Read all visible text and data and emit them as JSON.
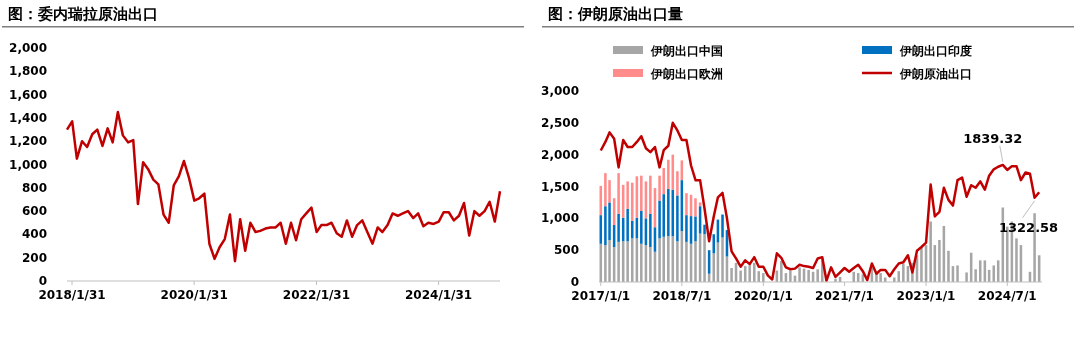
{
  "chart_data": [
    {
      "type": "line",
      "title": "图：委内瑞拉原油出口",
      "grid": false,
      "marker": "none",
      "line_style": "solid",
      "x": [
        "2018-01",
        "2018-02",
        "2018-03",
        "2018-04",
        "2018-05",
        "2018-06",
        "2018-07",
        "2018-08",
        "2018-09",
        "2018-10",
        "2018-11",
        "2018-12",
        "2019-01",
        "2019-02",
        "2019-03",
        "2019-04",
        "2019-05",
        "2019-06",
        "2019-07",
        "2019-08",
        "2019-09",
        "2019-10",
        "2019-11",
        "2019-12",
        "2020-01",
        "2020-02",
        "2020-03",
        "2020-04",
        "2020-05",
        "2020-06",
        "2020-07",
        "2020-08",
        "2020-09",
        "2020-10",
        "2020-11",
        "2020-12",
        "2021-01",
        "2021-02",
        "2021-03",
        "2021-04",
        "2021-05",
        "2021-06",
        "2021-07",
        "2021-08",
        "2021-09",
        "2021-10",
        "2021-11",
        "2021-12",
        "2022-01",
        "2022-02",
        "2022-03",
        "2022-04",
        "2022-05",
        "2022-06",
        "2022-07",
        "2022-08",
        "2022-09",
        "2022-10",
        "2022-11",
        "2022-12",
        "2023-01",
        "2023-02",
        "2023-03",
        "2023-04",
        "2023-05",
        "2023-06",
        "2023-07",
        "2023-08",
        "2023-09",
        "2023-10",
        "2023-11",
        "2023-12",
        "2024-01",
        "2024-02",
        "2024-03",
        "2024-04",
        "2024-05",
        "2024-06",
        "2024-07",
        "2024-08",
        "2024-09",
        "2024-10",
        "2024-11",
        "2024-12",
        "2025-01",
        "2025-02"
      ],
      "series": [
        {
          "color": "#c00000",
          "values": [
            1300,
            1370,
            1050,
            1200,
            1150,
            1260,
            1300,
            1160,
            1310,
            1190,
            1450,
            1250,
            1190,
            1210,
            660,
            1020,
            960,
            870,
            830,
            570,
            500,
            820,
            900,
            1030,
            880,
            690,
            710,
            750,
            320,
            190,
            290,
            360,
            570,
            170,
            530,
            260,
            500,
            420,
            430,
            450,
            460,
            460,
            500,
            320,
            500,
            350,
            530,
            580,
            630,
            420,
            480,
            480,
            500,
            410,
            380,
            520,
            380,
            480,
            520,
            420,
            320,
            460,
            420,
            480,
            580,
            560,
            580,
            600,
            540,
            580,
            470,
            500,
            490,
            510,
            590,
            590,
            520,
            560,
            670,
            390,
            600,
            560,
            600,
            680,
            510,
            770
          ]
        }
      ],
      "xlim": [
        "2018-01",
        "2025-02"
      ],
      "xticks": [
        {
          "value": "2018-01-31",
          "label": "2018/1/31"
        },
        {
          "value": "2020-01-31",
          "label": "2020/1/31"
        },
        {
          "value": "2022-01-31",
          "label": "2022/1/31"
        },
        {
          "value": "2024-01-31",
          "label": "2024/1/31"
        }
      ],
      "ylim": [
        0,
        2000
      ],
      "yticks": [
        0,
        {
          "value": 200,
          "label": "200"
        },
        {
          "value": 400,
          "label": "400"
        },
        {
          "value": 600,
          "label": "600"
        },
        {
          "value": 800,
          "label": "800"
        },
        {
          "value": 1000,
          "label": "1,000"
        },
        {
          "value": 1200,
          "label": "1,200"
        },
        {
          "value": 1400,
          "label": "1,400"
        },
        {
          "value": 1600,
          "label": "1,600"
        },
        {
          "value": 1800,
          "label": "1,800"
        },
        {
          "value": 2000,
          "label": "2,000"
        }
      ]
    },
    {
      "type": "bar",
      "title": "图：伊朗原油出口量",
      "stacked": true,
      "grid": false,
      "legend": "top",
      "marker": "none",
      "line_style": "solid",
      "x": [
        "2017-01",
        "2017-02",
        "2017-03",
        "2017-04",
        "2017-05",
        "2017-06",
        "2017-07",
        "2017-08",
        "2017-09",
        "2017-10",
        "2017-11",
        "2017-12",
        "2018-01",
        "2018-02",
        "2018-03",
        "2018-04",
        "2018-05",
        "2018-06",
        "2018-07",
        "2018-08",
        "2018-09",
        "2018-10",
        "2018-11",
        "2018-12",
        "2019-01",
        "2019-02",
        "2019-03",
        "2019-04",
        "2019-05",
        "2019-06",
        "2019-07",
        "2019-08",
        "2019-09",
        "2019-10",
        "2019-11",
        "2019-12",
        "2020-01",
        "2020-02",
        "2020-03",
        "2020-04",
        "2020-05",
        "2020-06",
        "2020-07",
        "2020-08",
        "2020-09",
        "2020-10",
        "2020-11",
        "2020-12",
        "2021-01",
        "2021-02",
        "2021-03",
        "2021-04",
        "2021-05",
        "2021-06",
        "2021-07",
        "2021-08",
        "2021-09",
        "2021-10",
        "2021-11",
        "2021-12",
        "2022-01",
        "2022-02",
        "2022-03",
        "2022-04",
        "2022-05",
        "2022-06",
        "2022-07",
        "2022-08",
        "2022-09",
        "2022-10",
        "2022-11",
        "2022-12",
        "2023-01",
        "2023-02",
        "2023-03",
        "2023-04",
        "2023-05",
        "2023-06",
        "2023-07",
        "2023-08",
        "2023-09",
        "2023-10",
        "2023-11",
        "2023-12",
        "2024-01",
        "2024-02",
        "2024-03",
        "2024-04",
        "2024-05",
        "2024-06",
        "2024-07",
        "2024-08",
        "2024-09",
        "2024-10",
        "2024-11",
        "2024-12",
        "2025-01",
        "2025-02"
      ],
      "series": [
        {
          "name": "伊朗出口中国",
          "color": "#a6a6a6",
          "values": [
            600,
            580,
            660,
            550,
            630,
            640,
            640,
            685,
            685,
            600,
            580,
            550,
            475,
            685,
            710,
            720,
            720,
            640,
            800,
            630,
            600,
            640,
            760,
            750,
            130,
            450,
            620,
            700,
            400,
            220,
            300,
            180,
            250,
            260,
            300,
            170,
            140,
            null,
            null,
            180,
            330,
            140,
            180,
            100,
            230,
            210,
            190,
            160,
            200,
            370,
            null,
            null,
            50,
            80,
            null,
            null,
            160,
            140,
            120,
            null,
            220,
            140,
            140,
            70,
            null,
            70,
            170,
            290,
            250,
            300,
            420,
            540,
            580,
            950,
            580,
            660,
            880,
            490,
            250,
            260,
            null,
            150,
            460,
            200,
            340,
            340,
            190,
            260,
            340,
            1170,
            870,
            950,
            685,
            580,
            null,
            160,
            1080,
            420
          ]
        },
        {
          "name": "伊朗出口印度",
          "color": "#0070c0",
          "values": [
            450,
            610,
            590,
            345,
            440,
            370,
            510,
            275,
            325,
            515,
            420,
            520,
            385,
            595,
            670,
            740,
            730,
            720,
            800,
            420,
            435,
            390,
            430,
            150,
            370,
            300,
            360,
            360,
            415,
            null,
            null,
            null,
            null,
            null,
            null,
            null,
            null,
            null,
            null,
            null,
            null,
            null,
            null,
            null,
            null,
            null,
            null,
            null,
            null,
            null,
            null,
            null,
            null,
            null,
            null,
            null,
            null,
            null,
            null,
            null,
            null,
            null,
            null,
            null,
            null,
            null,
            null,
            null,
            null,
            null,
            null,
            null,
            null,
            null,
            null,
            null,
            null,
            null,
            null,
            null,
            null,
            null,
            null,
            null,
            null,
            null,
            null,
            null,
            null,
            null,
            null,
            null,
            null,
            null,
            null,
            null,
            null,
            null
          ]
        },
        {
          "name": "伊朗出口欧洲",
          "color": "#ff8b8b",
          "values": [
            460,
            520,
            350,
            420,
            640,
            515,
            430,
            600,
            650,
            555,
            580,
            600,
            615,
            390,
            410,
            460,
            550,
            380,
            310,
            345,
            335,
            285,
            60,
            null,
            null,
            null,
            null,
            null,
            null,
            null,
            null,
            null,
            null,
            null,
            null,
            null,
            null,
            null,
            null,
            null,
            null,
            null,
            null,
            null,
            null,
            null,
            null,
            null,
            null,
            null,
            null,
            null,
            null,
            null,
            null,
            null,
            null,
            null,
            null,
            null,
            null,
            null,
            null,
            null,
            null,
            null,
            null,
            null,
            null,
            null,
            null,
            null,
            null,
            null,
            null,
            null,
            null,
            null,
            null,
            null,
            null,
            null,
            null,
            null,
            null,
            null,
            null,
            null,
            null,
            null,
            null,
            null,
            null,
            null,
            null,
            null,
            null,
            null
          ]
        },
        {
          "name": "伊朗原油出口",
          "type": "line",
          "color": "#c00000",
          "values": [
            2065,
            2200,
            2350,
            2250,
            1800,
            2230,
            2120,
            2120,
            2200,
            2290,
            2100,
            2040,
            2120,
            1800,
            2070,
            2140,
            2500,
            2380,
            2230,
            2230,
            1830,
            1600,
            1600,
            1150,
            640,
            1030,
            1330,
            1400,
            1000,
            480,
            370,
            240,
            340,
            280,
            390,
            240,
            240,
            100,
            40,
            450,
            380,
            230,
            200,
            210,
            270,
            250,
            240,
            220,
            370,
            390,
            20,
            230,
            80,
            150,
            220,
            160,
            220,
            270,
            170,
            30,
            290,
            130,
            190,
            190,
            90,
            200,
            290,
            310,
            420,
            150,
            490,
            550,
            620,
            1530,
            1030,
            1100,
            1480,
            1290,
            1200,
            1600,
            1640,
            1340,
            1520,
            1480,
            1580,
            1450,
            1670,
            1770,
            1810,
            1839.32,
            1760,
            1820,
            1820,
            1600,
            1720,
            1700,
            1322.58,
            1410
          ]
        }
      ],
      "xlim": [
        "2016-12-20",
        "2025-02-20"
      ],
      "xticks": [
        {
          "value": "2017-01-01",
          "label": "2017/1/1"
        },
        {
          "value": "2018-07-01",
          "label": "2018/7/1"
        },
        {
          "value": "2020-01-01",
          "label": "2020/1/1"
        },
        {
          "value": "2021-07-01",
          "label": "2021/7/1"
        },
        {
          "value": "2023-01-01",
          "label": "2023/1/1"
        },
        {
          "value": "2024-07-01",
          "label": "2024/7/1"
        }
      ],
      "ylim": [
        0,
        3000
      ],
      "yticks": [
        0,
        {
          "value": 500,
          "label": "500"
        },
        {
          "value": 1000,
          "label": "1,000"
        },
        {
          "value": 1500,
          "label": "1,500"
        },
        {
          "value": 2000,
          "label": "2,000"
        },
        {
          "value": 2500,
          "label": "2,500"
        },
        {
          "value": 3000,
          "label": "3,000"
        }
      ],
      "annotations": [
        {
          "text": "1839.32",
          "x": "2024-06",
          "y": 1839.32
        },
        {
          "text": "1322.58",
          "x": "2025-01",
          "y": 1322.58
        }
      ]
    }
  ]
}
